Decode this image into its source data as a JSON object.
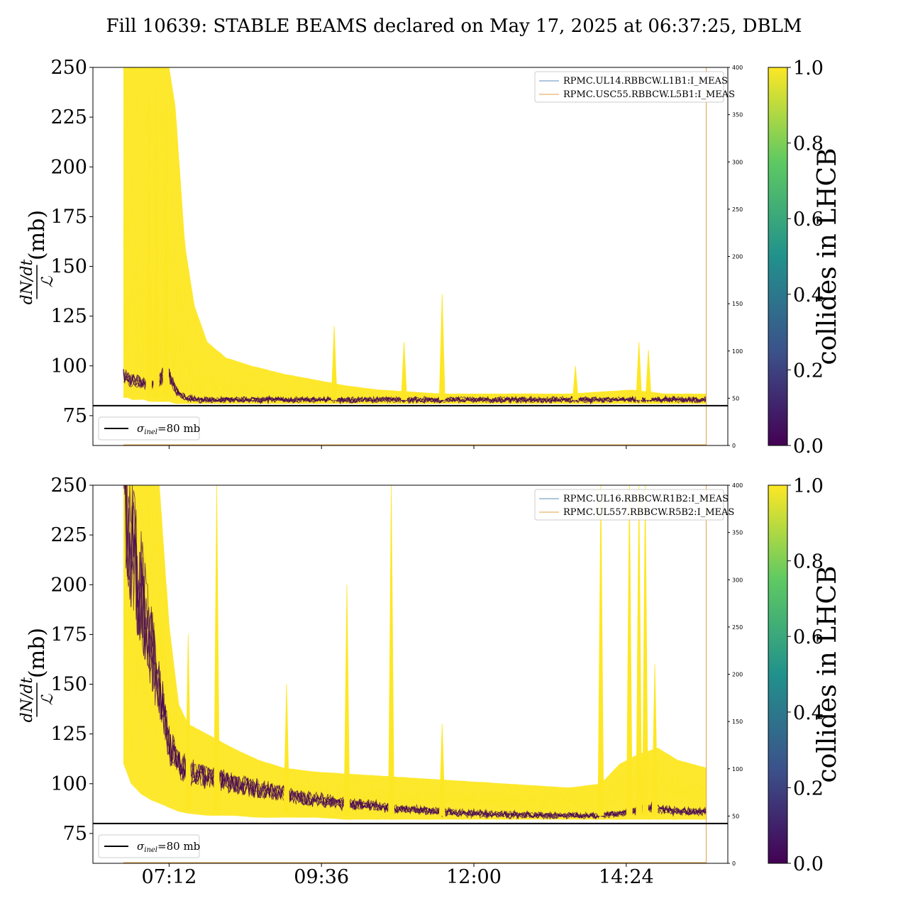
{
  "figure": {
    "title": "Fill 10639: STABLE BEAMS declared on May 17, 2025 at 06:37:25, DBLM",
    "colors": {
      "collides_yes": "#fde725",
      "collides_no": "#440154",
      "reference_line": "#000000",
      "magnet_current_1": "#5b8db8",
      "magnet_current_2": "#e0a040"
    }
  },
  "chart_data": [
    {
      "type": "line",
      "panel": "top",
      "ylabel_fraction_numerator": "dN/dt",
      "ylabel_fraction_denominator": "ℒ",
      "ylabel_unit": "(mb)",
      "ylim": [
        60,
        250
      ],
      "yticks": [
        75,
        100,
        125,
        150,
        175,
        200,
        225,
        250
      ],
      "y2lim": [
        0,
        400
      ],
      "y2ticks": [
        0,
        50,
        100,
        150,
        200,
        250,
        300,
        350,
        400
      ],
      "xlim_hours": [
        6.0,
        16.0
      ],
      "xticks": [
        {
          "label": "07:12",
          "hour": 7.2
        },
        {
          "label": "09:36",
          "hour": 9.6
        },
        {
          "label": "12:00",
          "hour": 12.0
        },
        {
          "label": "14:24",
          "hour": 14.4
        }
      ],
      "reference_line": {
        "value": 80,
        "label_symbol": "σ",
        "label_subscript": "inel",
        "label_rest": "=80 mb"
      },
      "legend": [
        "RPMC.UL14.RBBCW.L1B1:I_MEAS",
        "RPMC.USC55.RBBCW.L5B1:I_MEAS"
      ],
      "magnet_current": {
        "value": 0,
        "end_hour": 15.66
      },
      "dblm_envelope": {
        "hour": [
          6.48,
          6.55,
          6.62,
          6.7,
          6.8,
          6.9,
          7.0,
          7.1,
          7.2,
          7.3,
          7.45,
          7.6,
          7.8,
          8.1,
          8.5,
          9.0,
          9.5,
          10.0,
          10.5,
          11.0,
          11.5,
          12.0,
          12.5,
          13.0,
          13.5,
          14.0,
          14.5,
          15.0,
          15.66
        ],
        "upper": [
          250,
          250,
          250,
          250,
          250,
          250,
          250,
          250,
          250,
          230,
          160,
          130,
          112,
          104,
          100,
          96,
          93,
          90,
          88,
          87,
          86,
          86,
          86,
          86,
          86,
          87,
          88,
          86,
          86
        ],
        "lower": [
          84,
          84,
          83,
          83,
          83,
          82,
          82,
          82,
          82,
          81,
          81,
          81,
          81,
          81,
          81,
          81,
          81,
          81,
          81,
          81,
          81,
          81,
          81,
          81,
          81,
          81,
          81,
          81,
          81
        ]
      },
      "dblm_noncolliding_trace": {
        "hour": [
          6.48,
          6.6,
          6.75,
          6.9,
          7.0,
          7.1,
          7.2,
          7.3,
          7.45,
          7.7,
          8.2,
          9.0,
          10.0,
          11.0,
          12.0,
          13.0,
          14.0,
          15.0,
          15.66
        ],
        "value": [
          95,
          92,
          92,
          90,
          90,
          95,
          96,
          88,
          84,
          83,
          83,
          83,
          83,
          83,
          83,
          83,
          83,
          83,
          83
        ]
      },
      "spikes": [
        {
          "hour": 6.88,
          "value": 250
        },
        {
          "hour": 7.0,
          "value": 250
        },
        {
          "hour": 7.15,
          "value": 250
        },
        {
          "hour": 9.8,
          "value": 120
        },
        {
          "hour": 10.9,
          "value": 112
        },
        {
          "hour": 11.5,
          "value": 136
        },
        {
          "hour": 13.6,
          "value": 100
        },
        {
          "hour": 14.6,
          "value": 112
        },
        {
          "hour": 14.75,
          "value": 108
        }
      ]
    },
    {
      "type": "line",
      "panel": "bottom",
      "ylabel_fraction_numerator": "dN/dt",
      "ylabel_fraction_denominator": "ℒ",
      "ylabel_unit": "(mb)",
      "ylim": [
        60,
        250
      ],
      "yticks": [
        75,
        100,
        125,
        150,
        175,
        200,
        225,
        250
      ],
      "y2lim": [
        0,
        400
      ],
      "y2ticks": [
        0,
        50,
        100,
        150,
        200,
        250,
        300,
        350,
        400
      ],
      "xlim_hours": [
        6.0,
        16.0
      ],
      "xticks": [
        {
          "label": "07:12",
          "hour": 7.2
        },
        {
          "label": "09:36",
          "hour": 9.6
        },
        {
          "label": "12:00",
          "hour": 12.0
        },
        {
          "label": "14:24",
          "hour": 14.4
        }
      ],
      "reference_line": {
        "value": 80,
        "label_symbol": "σ",
        "label_subscript": "inel",
        "label_rest": "=80 mb"
      },
      "legend": [
        "RPMC.UL16.RBBCW.R1B2:I_MEAS",
        "RPMC.UL557.RBBCW.R5B2:I_MEAS"
      ],
      "magnet_current": {
        "value": 0,
        "end_hour": 15.66
      },
      "dblm_envelope": {
        "hour": [
          6.48,
          6.6,
          6.75,
          6.9,
          7.05,
          7.2,
          7.35,
          7.5,
          7.8,
          8.2,
          8.6,
          9.0,
          9.5,
          10.0,
          10.5,
          11.0,
          11.5,
          12.0,
          12.5,
          13.0,
          13.5,
          14.0,
          14.3,
          14.6,
          14.9,
          15.2,
          15.66
        ],
        "upper": [
          250,
          250,
          250,
          250,
          250,
          180,
          140,
          130,
          125,
          118,
          112,
          108,
          106,
          105,
          104,
          103,
          102,
          101,
          100,
          99,
          98,
          100,
          110,
          115,
          118,
          112,
          108
        ],
        "lower": [
          110,
          100,
          95,
          92,
          90,
          88,
          86,
          85,
          84,
          84,
          83,
          83,
          83,
          82,
          82,
          82,
          82,
          82,
          82,
          82,
          82,
          82,
          82,
          82,
          82,
          82,
          82
        ]
      },
      "dblm_noncolliding_trace": {
        "hour": [
          6.48,
          6.6,
          6.75,
          6.9,
          7.05,
          7.2,
          7.35,
          7.6,
          8.0,
          8.5,
          9.0,
          9.5,
          10.0,
          11.0,
          12.0,
          13.0,
          13.8,
          14.3,
          14.7,
          15.0,
          15.3,
          15.66
        ],
        "value": [
          250,
          220,
          200,
          170,
          150,
          120,
          110,
          105,
          102,
          98,
          95,
          92,
          90,
          87,
          85,
          84,
          84,
          85,
          88,
          87,
          86,
          86
        ]
      },
      "spikes": [
        {
          "hour": 7.5,
          "value": 175
        },
        {
          "hour": 7.95,
          "value": 250
        },
        {
          "hour": 9.05,
          "value": 150
        },
        {
          "hour": 10.0,
          "value": 200
        },
        {
          "hour": 10.7,
          "value": 250
        },
        {
          "hour": 11.5,
          "value": 130
        },
        {
          "hour": 14.0,
          "value": 250
        },
        {
          "hour": 14.45,
          "value": 250
        },
        {
          "hour": 14.6,
          "value": 250
        },
        {
          "hour": 14.7,
          "value": 250
        },
        {
          "hour": 14.85,
          "value": 160
        }
      ]
    }
  ],
  "colorbar": {
    "label": "collides in LHCB",
    "range": [
      0.0,
      1.0
    ],
    "ticks": [
      "0.0",
      "0.2",
      "0.4",
      "0.6",
      "0.8",
      "1.0"
    ],
    "colormap": "viridis",
    "stops": [
      "#440154",
      "#3b528b",
      "#21918c",
      "#5ec962",
      "#fde725"
    ]
  }
}
